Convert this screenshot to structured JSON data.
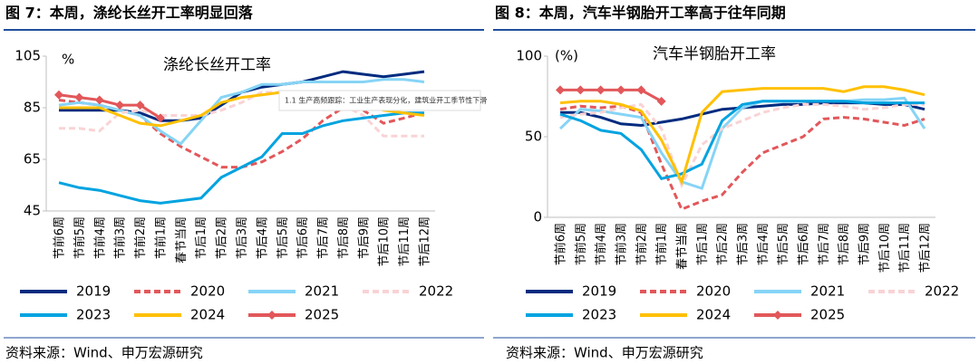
{
  "chart_data": [
    {
      "type": "line",
      "title": "图 7：本周，涤纶长丝开工率明显回落",
      "subtitle": "涤纶长丝开工率",
      "y_label": "%",
      "annotation": "1.1 生产高频跟踪：工业生产表现分化，建筑业开工季节性下滑",
      "source": "资料来源：Wind、申万宏源研究",
      "categories": [
        "节前6周",
        "节前5周",
        "节前4周",
        "节前3周",
        "节前2周",
        "节前1周",
        "春节当周",
        "节后1周",
        "节后2周",
        "节后3周",
        "节后4周",
        "节后5周",
        "节后6周",
        "节后7周",
        "节后8周",
        "节后9周",
        "节后10周",
        "节后11周",
        "节后12周"
      ],
      "ylim": [
        45,
        105
      ],
      "yticks": [
        45,
        65,
        85,
        105
      ],
      "series": [
        {
          "name": "2019",
          "color": "#002b7f",
          "line_style": "solid",
          "values": [
            84,
            84,
            84,
            84,
            83,
            80,
            80,
            81,
            86,
            91,
            93,
            94,
            95,
            97,
            99,
            98,
            97,
            98,
            99
          ]
        },
        {
          "name": "2020",
          "color": "#e2575a",
          "line_style": "dashed",
          "values": [
            88,
            87,
            86,
            84,
            82,
            75,
            70,
            66,
            62,
            62,
            64,
            68,
            73,
            80,
            85,
            84,
            79,
            81,
            83
          ]
        },
        {
          "name": "2021",
          "color": "#86d4f6",
          "line_style": "solid",
          "values": [
            86,
            87,
            86,
            84,
            82,
            76,
            71,
            80,
            89,
            91,
            94,
            94,
            95,
            95,
            95,
            95,
            96,
            96,
            95
          ]
        },
        {
          "name": "2022",
          "color": "#f9d3d5",
          "line_style": "dashed",
          "values": [
            77,
            77,
            76,
            83,
            84,
            82,
            82,
            82,
            84,
            87,
            91,
            91,
            89,
            85,
            86,
            82,
            74,
            74,
            74
          ]
        },
        {
          "name": "2023",
          "color": "#00a3e0",
          "line_style": "solid",
          "values": [
            56,
            54,
            53,
            51,
            49,
            48,
            49,
            50,
            58,
            62,
            66,
            75,
            75,
            78,
            80,
            81,
            82,
            83,
            83
          ]
        },
        {
          "name": "2024",
          "color": "#ffc000",
          "line_style": "solid",
          "values": [
            85,
            85,
            85,
            82,
            79,
            78,
            80,
            82,
            87,
            89,
            90,
            91,
            89,
            90,
            88,
            87,
            84,
            83,
            82
          ]
        },
        {
          "name": "2025",
          "color": "#e2575a",
          "line_style": "solid",
          "marker": "diamond",
          "values": [
            90,
            89,
            88,
            86,
            86,
            81,
            null,
            null,
            null,
            null,
            null,
            null,
            null,
            null,
            null,
            null,
            null,
            null,
            null
          ]
        }
      ]
    },
    {
      "type": "line",
      "title": "图 8：本周，汽车半钢胎开工率高于往年同期",
      "subtitle": "汽车半钢胎开工率",
      "y_label": "(%)",
      "source": "资料来源：Wind、申万宏源研究",
      "categories": [
        "节前6周",
        "节前5周",
        "节前4周",
        "节前3周",
        "节前2周",
        "节前1周",
        "春节当周",
        "节后1周",
        "节后2周",
        "节后3周",
        "节后4周",
        "节后5周",
        "节后6周",
        "节后7周",
        "节后8周",
        "节后9周",
        "节后10周",
        "节后11周",
        "节后12周"
      ],
      "ylim": [
        0,
        100
      ],
      "yticks": [
        0,
        50,
        100
      ],
      "series": [
        {
          "name": "2019",
          "color": "#002b7f",
          "line_style": "solid",
          "values": [
            65,
            65,
            62,
            58,
            57,
            59,
            61,
            64,
            67,
            68,
            69,
            70,
            70,
            71,
            71,
            71,
            70,
            70,
            67
          ]
        },
        {
          "name": "2020",
          "color": "#e2575a",
          "line_style": "dashed",
          "values": [
            67,
            69,
            68,
            69,
            65,
            33,
            5,
            10,
            14,
            28,
            40,
            45,
            50,
            61,
            62,
            61,
            59,
            57,
            61
          ]
        },
        {
          "name": "2021",
          "color": "#86d4f6",
          "line_style": "solid",
          "values": [
            55,
            67,
            66,
            64,
            62,
            40,
            22,
            18,
            55,
            68,
            72,
            72,
            72,
            72,
            72,
            73,
            73,
            74,
            55
          ]
        },
        {
          "name": "2022",
          "color": "#f9d3d5",
          "line_style": "dashed",
          "values": [
            62,
            64,
            65,
            68,
            70,
            55,
            20,
            45,
            55,
            60,
            65,
            68,
            70,
            70,
            69,
            67,
            68,
            70,
            70
          ]
        },
        {
          "name": "2023",
          "color": "#00a3e0",
          "line_style": "solid",
          "values": [
            64,
            60,
            54,
            52,
            42,
            24,
            27,
            33,
            60,
            70,
            72,
            72,
            72,
            72,
            72,
            71,
            71,
            71,
            71
          ]
        },
        {
          "name": "2024",
          "color": "#ffc000",
          "line_style": "solid",
          "values": [
            71,
            72,
            72,
            70,
            66,
            48,
            22,
            65,
            78,
            79,
            80,
            80,
            80,
            80,
            78,
            81,
            81,
            79,
            76
          ]
        },
        {
          "name": "2025",
          "color": "#e2575a",
          "line_style": "solid",
          "marker": "diamond",
          "values": [
            79,
            79,
            79,
            79,
            79,
            72,
            null,
            null,
            null,
            null,
            null,
            null,
            null,
            null,
            null,
            null,
            null,
            null,
            null
          ]
        }
      ]
    }
  ]
}
